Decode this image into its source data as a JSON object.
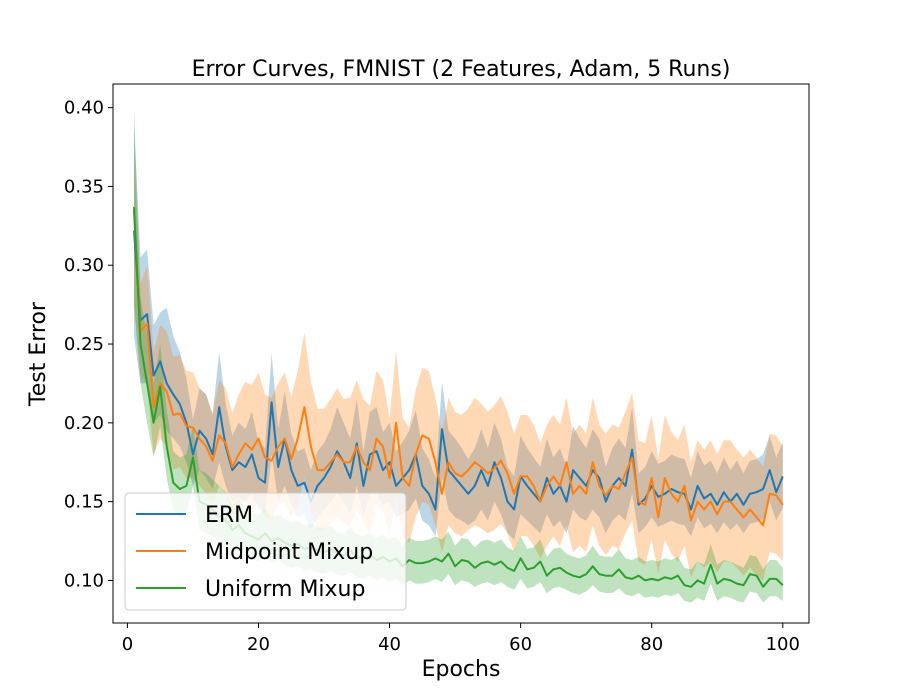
{
  "chart_data": {
    "type": "line",
    "title": "Error Curves, FMNIST (2 Features, Adam, 5 Runs)",
    "xlabel": "Epochs",
    "ylabel": "Test Error",
    "xlim": [
      -2.2,
      104.0
    ],
    "ylim": [
      0.073,
      0.415
    ],
    "x_ticks": [
      0,
      20,
      40,
      60,
      80,
      100
    ],
    "y_ticks": [
      0.1,
      0.15,
      0.2,
      0.25,
      0.3,
      0.35,
      0.4
    ],
    "y_tick_labels": [
      "0.10",
      "0.15",
      "0.20",
      "0.25",
      "0.30",
      "0.35",
      "0.40"
    ],
    "grid": false,
    "legend_position": "lower-left",
    "shaded_band": "spread across 5 runs",
    "x": [
      1,
      2,
      3,
      4,
      5,
      6,
      7,
      8,
      9,
      10,
      11,
      12,
      13,
      14,
      15,
      16,
      17,
      18,
      19,
      20,
      21,
      22,
      23,
      24,
      25,
      26,
      27,
      28,
      29,
      30,
      31,
      32,
      33,
      34,
      35,
      36,
      37,
      38,
      39,
      40,
      41,
      42,
      43,
      44,
      45,
      46,
      47,
      48,
      49,
      50,
      51,
      52,
      53,
      54,
      55,
      56,
      57,
      58,
      59,
      60,
      61,
      62,
      63,
      64,
      65,
      66,
      67,
      68,
      69,
      70,
      71,
      72,
      73,
      74,
      75,
      76,
      77,
      78,
      79,
      80,
      81,
      82,
      83,
      84,
      85,
      86,
      87,
      88,
      89,
      90,
      91,
      92,
      93,
      94,
      95,
      96,
      97,
      98,
      99,
      100
    ],
    "series": [
      {
        "name": "ERM",
        "color": "#1f77b4",
        "values": [
          0.322,
          0.265,
          0.269,
          0.23,
          0.239,
          0.225,
          0.218,
          0.212,
          0.2,
          0.18,
          0.195,
          0.19,
          0.18,
          0.21,
          0.185,
          0.17,
          0.175,
          0.172,
          0.18,
          0.165,
          0.162,
          0.213,
          0.172,
          0.19,
          0.17,
          0.16,
          0.162,
          0.15,
          0.16,
          0.165,
          0.172,
          0.182,
          0.175,
          0.165,
          0.187,
          0.16,
          0.18,
          0.182,
          0.17,
          0.175,
          0.16,
          0.165,
          0.17,
          0.18,
          0.16,
          0.155,
          0.145,
          0.196,
          0.17,
          0.165,
          0.16,
          0.155,
          0.16,
          0.17,
          0.16,
          0.175,
          0.165,
          0.15,
          0.145,
          0.166,
          0.16,
          0.155,
          0.15,
          0.165,
          0.155,
          0.16,
          0.15,
          0.17,
          0.165,
          0.16,
          0.17,
          0.165,
          0.15,
          0.16,
          0.165,
          0.16,
          0.183,
          0.148,
          0.152,
          0.16,
          0.153,
          0.155,
          0.158,
          0.156,
          0.155,
          0.145,
          0.16,
          0.152,
          0.155,
          0.148,
          0.156,
          0.15,
          0.155,
          0.148,
          0.155,
          0.156,
          0.158,
          0.17,
          0.156,
          0.166
        ],
        "band": {
          "lower": [
            0.255,
            0.225,
            0.225,
            0.2,
            0.205,
            0.195,
            0.19,
            0.185,
            0.175,
            0.16,
            0.17,
            0.165,
            0.158,
            0.175,
            0.16,
            0.15,
            0.152,
            0.15,
            0.155,
            0.145,
            0.142,
            0.18,
            0.15,
            0.16,
            0.148,
            0.14,
            0.142,
            0.132,
            0.14,
            0.145,
            0.15,
            0.155,
            0.15,
            0.142,
            0.16,
            0.14,
            0.155,
            0.155,
            0.148,
            0.15,
            0.14,
            0.142,
            0.145,
            0.152,
            0.138,
            0.135,
            0.128,
            0.165,
            0.145,
            0.14,
            0.138,
            0.135,
            0.138,
            0.145,
            0.138,
            0.15,
            0.142,
            0.13,
            0.126,
            0.142,
            0.138,
            0.134,
            0.13,
            0.142,
            0.134,
            0.138,
            0.13,
            0.145,
            0.14,
            0.138,
            0.145,
            0.14,
            0.13,
            0.138,
            0.142,
            0.138,
            0.155,
            0.13,
            0.134,
            0.14,
            0.134,
            0.136,
            0.138,
            0.136,
            0.135,
            0.128,
            0.14,
            0.133,
            0.136,
            0.13,
            0.137,
            0.132,
            0.136,
            0.13,
            0.136,
            0.137,
            0.139,
            0.15,
            0.138,
            0.146
          ],
          "upper": [
            0.39,
            0.305,
            0.31,
            0.262,
            0.27,
            0.273,
            0.255,
            0.245,
            0.228,
            0.202,
            0.222,
            0.218,
            0.205,
            0.245,
            0.212,
            0.192,
            0.2,
            0.196,
            0.207,
            0.188,
            0.184,
            0.244,
            0.196,
            0.22,
            0.193,
            0.182,
            0.184,
            0.17,
            0.182,
            0.187,
            0.196,
            0.21,
            0.2,
            0.19,
            0.215,
            0.182,
            0.207,
            0.21,
            0.194,
            0.2,
            0.182,
            0.188,
            0.195,
            0.208,
            0.184,
            0.177,
            0.165,
            0.226,
            0.195,
            0.19,
            0.184,
            0.177,
            0.184,
            0.196,
            0.184,
            0.2,
            0.19,
            0.172,
            0.166,
            0.192,
            0.184,
            0.178,
            0.172,
            0.19,
            0.178,
            0.184,
            0.172,
            0.198,
            0.19,
            0.184,
            0.196,
            0.19,
            0.172,
            0.184,
            0.19,
            0.184,
            0.21,
            0.168,
            0.172,
            0.182,
            0.174,
            0.176,
            0.18,
            0.178,
            0.177,
            0.165,
            0.182,
            0.173,
            0.176,
            0.168,
            0.178,
            0.17,
            0.176,
            0.168,
            0.176,
            0.177,
            0.18,
            0.192,
            0.178,
            0.188
          ]
        }
      },
      {
        "name": "Midpoint Mixup",
        "color": "#ff7f0e",
        "values": [
          0.335,
          0.258,
          0.263,
          0.21,
          0.225,
          0.22,
          0.205,
          0.206,
          0.198,
          0.197,
          0.19,
          0.185,
          0.176,
          0.192,
          0.187,
          0.172,
          0.18,
          0.187,
          0.183,
          0.19,
          0.178,
          0.176,
          0.185,
          0.19,
          0.177,
          0.19,
          0.21,
          0.185,
          0.17,
          0.17,
          0.175,
          0.18,
          0.175,
          0.175,
          0.185,
          0.175,
          0.17,
          0.19,
          0.185,
          0.165,
          0.2,
          0.165,
          0.16,
          0.18,
          0.192,
          0.19,
          0.175,
          0.155,
          0.175,
          0.168,
          0.166,
          0.17,
          0.175,
          0.172,
          0.168,
          0.171,
          0.176,
          0.168,
          0.155,
          0.166,
          0.166,
          0.16,
          0.15,
          0.16,
          0.166,
          0.16,
          0.175,
          0.155,
          0.16,
          0.155,
          0.175,
          0.16,
          0.154,
          0.16,
          0.158,
          0.168,
          0.178,
          0.15,
          0.148,
          0.165,
          0.14,
          0.165,
          0.155,
          0.15,
          0.16,
          0.138,
          0.15,
          0.145,
          0.15,
          0.142,
          0.15,
          0.15,
          0.145,
          0.14,
          0.145,
          0.14,
          0.135,
          0.155,
          0.154,
          0.148
        ],
        "band": {
          "lower": [
            0.275,
            0.23,
            0.225,
            0.18,
            0.19,
            0.185,
            0.17,
            0.172,
            0.165,
            0.165,
            0.16,
            0.155,
            0.148,
            0.16,
            0.155,
            0.14,
            0.145,
            0.15,
            0.145,
            0.15,
            0.14,
            0.138,
            0.148,
            0.15,
            0.14,
            0.148,
            0.165,
            0.145,
            0.132,
            0.132,
            0.136,
            0.14,
            0.136,
            0.135,
            0.145,
            0.136,
            0.13,
            0.148,
            0.144,
            0.128,
            0.155,
            0.128,
            0.124,
            0.14,
            0.15,
            0.148,
            0.135,
            0.118,
            0.135,
            0.13,
            0.128,
            0.132,
            0.135,
            0.133,
            0.13,
            0.132,
            0.136,
            0.13,
            0.118,
            0.128,
            0.128,
            0.122,
            0.114,
            0.122,
            0.128,
            0.122,
            0.135,
            0.118,
            0.122,
            0.118,
            0.135,
            0.122,
            0.116,
            0.122,
            0.12,
            0.13,
            0.138,
            0.112,
            0.11,
            0.126,
            0.104,
            0.126,
            0.117,
            0.112,
            0.122,
            0.102,
            0.112,
            0.108,
            0.112,
            0.105,
            0.112,
            0.112,
            0.108,
            0.103,
            0.108,
            0.103,
            0.1,
            0.118,
            0.117,
            0.112
          ],
          "upper": [
            0.372,
            0.288,
            0.3,
            0.245,
            0.262,
            0.258,
            0.242,
            0.243,
            0.233,
            0.232,
            0.222,
            0.218,
            0.206,
            0.227,
            0.222,
            0.206,
            0.218,
            0.226,
            0.224,
            0.232,
            0.218,
            0.216,
            0.225,
            0.232,
            0.216,
            0.233,
            0.257,
            0.226,
            0.209,
            0.209,
            0.215,
            0.222,
            0.215,
            0.216,
            0.227,
            0.215,
            0.211,
            0.233,
            0.227,
            0.203,
            0.246,
            0.203,
            0.197,
            0.221,
            0.235,
            0.233,
            0.216,
            0.193,
            0.216,
            0.207,
            0.205,
            0.209,
            0.216,
            0.212,
            0.207,
            0.211,
            0.217,
            0.207,
            0.193,
            0.205,
            0.205,
            0.199,
            0.187,
            0.199,
            0.205,
            0.199,
            0.216,
            0.193,
            0.199,
            0.193,
            0.216,
            0.199,
            0.193,
            0.199,
            0.197,
            0.207,
            0.219,
            0.189,
            0.187,
            0.205,
            0.177,
            0.205,
            0.194,
            0.189,
            0.199,
            0.175,
            0.189,
            0.183,
            0.189,
            0.18,
            0.189,
            0.189,
            0.183,
            0.178,
            0.183,
            0.178,
            0.172,
            0.193,
            0.192,
            0.185
          ]
        }
      },
      {
        "name": "Uniform Mixup",
        "color": "#2ca02c",
        "values": [
          0.337,
          0.25,
          0.225,
          0.2,
          0.223,
          0.185,
          0.162,
          0.158,
          0.16,
          0.178,
          0.15,
          0.148,
          0.145,
          0.141,
          0.138,
          0.132,
          0.135,
          0.13,
          0.128,
          0.126,
          0.13,
          0.125,
          0.127,
          0.124,
          0.122,
          0.123,
          0.12,
          0.121,
          0.119,
          0.118,
          0.12,
          0.117,
          0.116,
          0.119,
          0.115,
          0.114,
          0.116,
          0.113,
          0.115,
          0.112,
          0.114,
          0.109,
          0.113,
          0.111,
          0.111,
          0.112,
          0.114,
          0.112,
          0.117,
          0.109,
          0.113,
          0.112,
          0.108,
          0.111,
          0.112,
          0.11,
          0.112,
          0.108,
          0.106,
          0.114,
          0.107,
          0.108,
          0.112,
          0.103,
          0.107,
          0.108,
          0.105,
          0.103,
          0.102,
          0.104,
          0.109,
          0.104,
          0.103,
          0.103,
          0.107,
          0.102,
          0.101,
          0.103,
          0.1,
          0.101,
          0.1,
          0.102,
          0.101,
          0.103,
          0.097,
          0.096,
          0.1,
          0.098,
          0.11,
          0.098,
          0.101,
          0.1,
          0.098,
          0.097,
          0.104,
          0.103,
          0.096,
          0.101,
          0.101,
          0.097
        ],
        "band": {
          "lower": [
            0.275,
            0.225,
            0.2,
            0.178,
            0.198,
            0.165,
            0.145,
            0.14,
            0.142,
            0.16,
            0.132,
            0.13,
            0.128,
            0.125,
            0.122,
            0.118,
            0.12,
            0.116,
            0.114,
            0.112,
            0.116,
            0.111,
            0.113,
            0.11,
            0.108,
            0.109,
            0.106,
            0.107,
            0.105,
            0.104,
            0.106,
            0.104,
            0.103,
            0.105,
            0.102,
            0.101,
            0.103,
            0.1,
            0.102,
            0.099,
            0.101,
            0.097,
            0.1,
            0.098,
            0.098,
            0.099,
            0.101,
            0.099,
            0.104,
            0.097,
            0.1,
            0.099,
            0.096,
            0.098,
            0.099,
            0.097,
            0.099,
            0.096,
            0.094,
            0.101,
            0.095,
            0.096,
            0.099,
            0.092,
            0.095,
            0.096,
            0.094,
            0.092,
            0.091,
            0.093,
            0.097,
            0.093,
            0.092,
            0.092,
            0.095,
            0.091,
            0.09,
            0.092,
            0.089,
            0.09,
            0.089,
            0.091,
            0.09,
            0.092,
            0.087,
            0.086,
            0.089,
            0.087,
            0.098,
            0.087,
            0.09,
            0.089,
            0.087,
            0.086,
            0.093,
            0.092,
            0.086,
            0.09,
            0.09,
            0.087
          ],
          "upper": [
            0.4,
            0.28,
            0.255,
            0.225,
            0.25,
            0.208,
            0.182,
            0.178,
            0.18,
            0.198,
            0.17,
            0.168,
            0.164,
            0.16,
            0.156,
            0.148,
            0.152,
            0.146,
            0.143,
            0.141,
            0.146,
            0.14,
            0.142,
            0.139,
            0.137,
            0.138,
            0.135,
            0.136,
            0.134,
            0.133,
            0.135,
            0.131,
            0.13,
            0.134,
            0.129,
            0.128,
            0.13,
            0.127,
            0.129,
            0.126,
            0.128,
            0.122,
            0.127,
            0.125,
            0.125,
            0.126,
            0.128,
            0.126,
            0.131,
            0.122,
            0.127,
            0.126,
            0.121,
            0.125,
            0.126,
            0.124,
            0.126,
            0.121,
            0.119,
            0.128,
            0.12,
            0.121,
            0.126,
            0.115,
            0.12,
            0.121,
            0.117,
            0.115,
            0.114,
            0.116,
            0.122,
            0.116,
            0.115,
            0.115,
            0.12,
            0.114,
            0.113,
            0.115,
            0.112,
            0.113,
            0.112,
            0.114,
            0.113,
            0.115,
            0.108,
            0.107,
            0.112,
            0.11,
            0.123,
            0.11,
            0.113,
            0.112,
            0.11,
            0.108,
            0.116,
            0.115,
            0.107,
            0.113,
            0.113,
            0.108
          ]
        }
      }
    ]
  }
}
